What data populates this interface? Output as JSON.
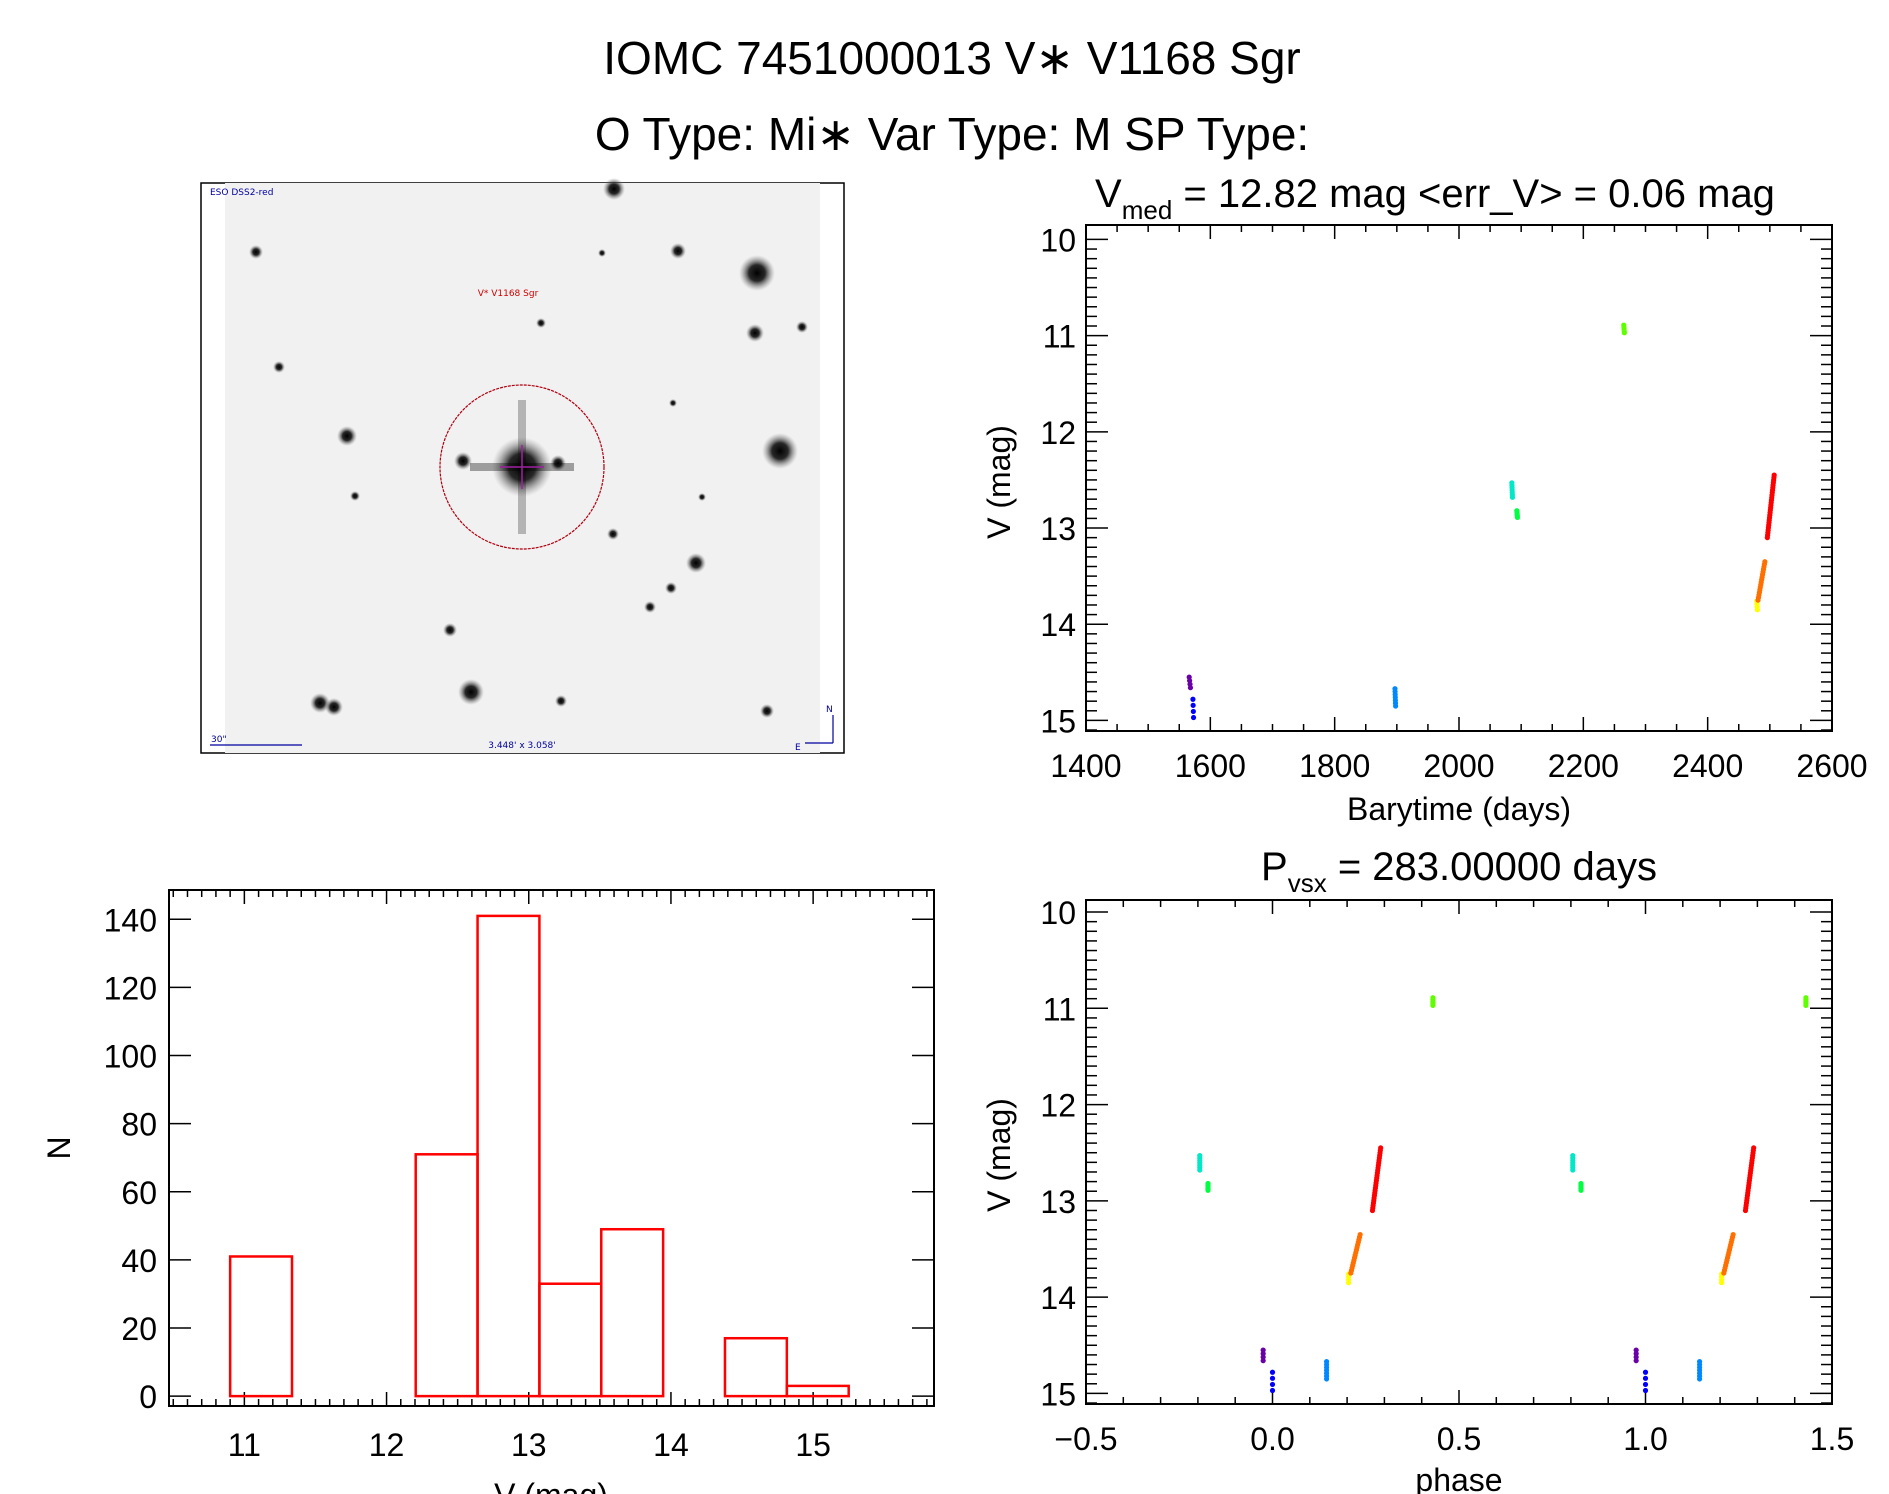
{
  "header": {
    "line1": "IOMC 7451000013   V∗ V1168 Sgr",
    "line2": "O Type: Mi∗   Var Type: M   SP Type:"
  },
  "finder": {
    "survey": "ESO DSS2-red",
    "target": "V* V1168 Sgr",
    "scale": "30\"",
    "fov": "3.448' x 3.058'",
    "north": "N",
    "east": "E"
  },
  "chart_data": [
    {
      "id": "lightcurve",
      "type": "scatter",
      "title_main": "V",
      "title_sub": "med",
      "title_rest": " = 12.82 mag  <err_V> = 0.06 mag",
      "xlabel": "Barytime (days)",
      "ylabel": "V (mag)",
      "xlim": [
        1400,
        2600
      ],
      "ylim": [
        15.11,
        9.85
      ],
      "xticks": [
        "1400",
        "1600",
        "1800",
        "2000",
        "2200",
        "2400",
        "2600"
      ],
      "yticks": [
        "10",
        "11",
        "12",
        "13",
        "14",
        "15"
      ],
      "series": [
        {
          "name": "c1",
          "color": "#6a00a8",
          "t": [
            1566,
            1568
          ],
          "mag": [
            14.55,
            14.66
          ],
          "n": 4
        },
        {
          "name": "c2",
          "color": "#0000ff",
          "t": [
            1572,
            1573
          ],
          "mag": [
            14.78,
            14.97
          ],
          "n": 4
        },
        {
          "name": "c3",
          "color": "#0088ff",
          "t": [
            1897,
            1898
          ],
          "mag": [
            14.67,
            14.85
          ],
          "n": 7
        },
        {
          "name": "c4",
          "color": "#00e8c8",
          "t": [
            2085,
            2086
          ],
          "mag": [
            12.53,
            12.68
          ],
          "n": 7
        },
        {
          "name": "c5",
          "color": "#00ff40",
          "t": [
            2093,
            2094
          ],
          "mag": [
            12.82,
            12.89
          ],
          "n": 5
        },
        {
          "name": "c6",
          "color": "#60ff00",
          "t": [
            2265,
            2266
          ],
          "mag": [
            10.89,
            10.97
          ],
          "n": 5
        },
        {
          "name": "c7",
          "color": "#ffff00",
          "t": [
            2479,
            2480
          ],
          "mag": [
            13.76,
            13.85
          ],
          "n": 4
        },
        {
          "name": "c8",
          "color": "#ff7000",
          "t": [
            2481,
            2492
          ],
          "mag": [
            13.75,
            13.35
          ],
          "n": 16
        },
        {
          "name": "c9",
          "color": "#ff0000",
          "t": [
            2496,
            2507
          ],
          "mag": [
            13.1,
            12.45
          ],
          "n": 26
        }
      ]
    },
    {
      "id": "histogram",
      "type": "bar",
      "xlabel": "V (mag)",
      "ylabel": "N",
      "xlim": [
        10.47,
        15.85
      ],
      "ylim": [
        -2.9,
        148.6
      ],
      "xticks": [
        "11",
        "12",
        "13",
        "14",
        "15"
      ],
      "yticks": [
        "0",
        "20",
        "40",
        "60",
        "80",
        "100",
        "120",
        "140"
      ],
      "bin_edges": [
        10.9,
        11.335,
        11.77,
        12.205,
        12.64,
        13.075,
        13.51,
        13.945,
        14.38,
        14.815,
        15.25
      ],
      "values": [
        41,
        0,
        0,
        71,
        141,
        33,
        49,
        0,
        17,
        3
      ]
    },
    {
      "id": "phased",
      "type": "scatter",
      "title_main": "P",
      "title_sub": "vsx",
      "title_rest": " = 283.00000 days",
      "xlabel": "phase",
      "ylabel": "V (mag)",
      "xlim": [
        -0.5,
        1.5
      ],
      "ylim": [
        15.11,
        9.875
      ],
      "xticks": [
        "−0.5",
        "0.0",
        "0.5",
        "1.0",
        "1.5"
      ],
      "yticks": [
        "10",
        "11",
        "12",
        "13",
        "14",
        "15"
      ],
      "series": [
        {
          "name": "c1",
          "color": "#6a00a8",
          "phase": [
            -0.025,
            -0.025
          ],
          "mag": [
            14.55,
            14.66
          ],
          "n": 4
        },
        {
          "name": "c2",
          "color": "#0000ff",
          "phase": [
            0.0,
            0.0
          ],
          "mag": [
            14.78,
            14.97
          ],
          "n": 4
        },
        {
          "name": "c3",
          "color": "#0088ff",
          "phase": [
            0.145,
            0.145
          ],
          "mag": [
            14.67,
            14.85
          ],
          "n": 7
        },
        {
          "name": "c4",
          "color": "#00e8c8",
          "phase": [
            -0.195,
            -0.195
          ],
          "mag": [
            12.53,
            12.68
          ],
          "n": 7
        },
        {
          "name": "c5",
          "color": "#00ff40",
          "phase": [
            -0.173,
            -0.173
          ],
          "mag": [
            12.82,
            12.89
          ],
          "n": 5
        },
        {
          "name": "c6",
          "color": "#60ff00",
          "phase": [
            0.43,
            0.43
          ],
          "mag": [
            10.89,
            10.97
          ],
          "n": 5
        },
        {
          "name": "c7",
          "color": "#ffff00",
          "phase": [
            0.204,
            0.204
          ],
          "mag": [
            13.76,
            13.85
          ],
          "n": 4
        },
        {
          "name": "c8",
          "color": "#ff7000",
          "phase": [
            0.21,
            0.235
          ],
          "mag": [
            13.75,
            13.35
          ],
          "n": 16
        },
        {
          "name": "c9",
          "color": "#ff0000",
          "phase": [
            0.268,
            0.29
          ],
          "mag": [
            13.1,
            12.45
          ],
          "n": 26
        }
      ]
    }
  ]
}
